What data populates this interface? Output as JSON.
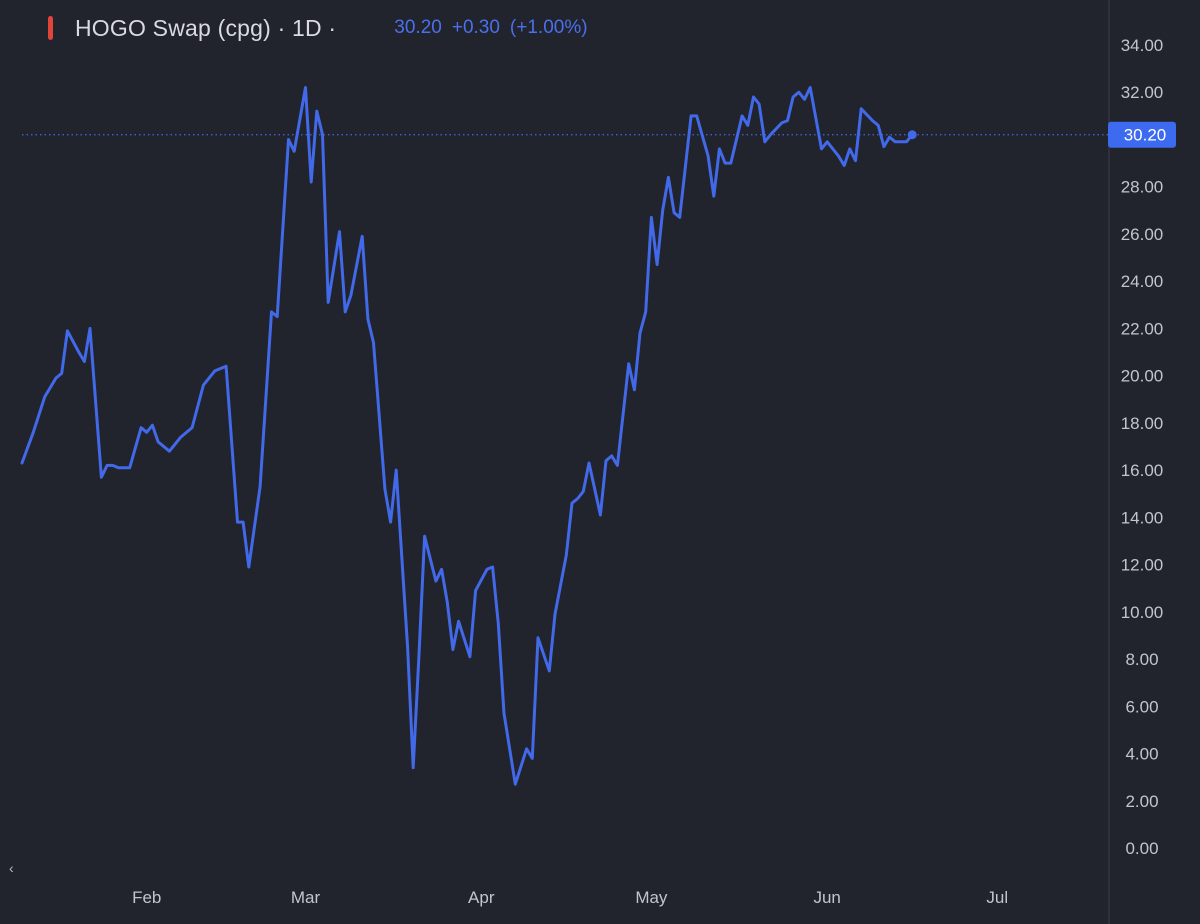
{
  "header": {
    "symbol": "HOGO Swap (cpg) · 1D ·",
    "last_price": "30.20",
    "change": "+0.30",
    "change_pct": "(+1.00%)",
    "marker_color": "#e0453a",
    "price_color": "#4a70ec"
  },
  "price_label": "30.20",
  "scroll_icon": "‹",
  "colors": {
    "background": "#21232d",
    "line": "#4169e8",
    "axis_text": "#c2c5ce",
    "axis_border": "#3a3d4a",
    "price_tag_bg": "#3d6bf0"
  },
  "chart_data": {
    "type": "line",
    "title": "HOGO Swap (cpg) · 1D ·",
    "xlabel": "",
    "ylabel": "",
    "ylim": [
      0,
      34
    ],
    "yticks": [
      "0.00",
      "2.00",
      "4.00",
      "6.00",
      "8.00",
      "10.00",
      "12.00",
      "14.00",
      "16.00",
      "18.00",
      "20.00",
      "22.00",
      "24.00",
      "26.00",
      "28.00",
      "30.00",
      "32.00",
      "34.00"
    ],
    "x_ticks": [
      {
        "label": "Feb",
        "day": 27
      },
      {
        "label": "Mar",
        "day": 55
      },
      {
        "label": "Apr",
        "day": 86
      },
      {
        "label": "May",
        "day": 116
      },
      {
        "label": "Jun",
        "day": 147
      },
      {
        "label": "Jul",
        "day": 177
      }
    ],
    "xlim": [
      5,
      196
    ],
    "last_value": 30.2,
    "grid": false,
    "series": [
      {
        "points": [
          [
            5,
            16.3
          ],
          [
            7,
            17.6
          ],
          [
            9,
            19.1
          ],
          [
            11,
            19.9
          ],
          [
            12,
            20.1
          ],
          [
            13,
            21.9
          ],
          [
            15,
            21.0
          ],
          [
            16,
            20.6
          ],
          [
            17,
            22.0
          ],
          [
            19,
            15.7
          ],
          [
            20,
            16.2
          ],
          [
            21,
            16.2
          ],
          [
            22,
            16.1
          ],
          [
            24,
            16.1
          ],
          [
            26,
            17.8
          ],
          [
            27,
            17.6
          ],
          [
            28,
            17.9
          ],
          [
            29,
            17.2
          ],
          [
            31,
            16.8
          ],
          [
            33,
            17.4
          ],
          [
            35,
            17.8
          ],
          [
            37,
            19.6
          ],
          [
            39,
            20.2
          ],
          [
            41,
            20.4
          ],
          [
            43,
            13.8
          ],
          [
            44,
            13.8
          ],
          [
            45,
            11.9
          ],
          [
            47,
            15.3
          ],
          [
            49,
            22.7
          ],
          [
            50,
            22.5
          ],
          [
            52,
            30.0
          ],
          [
            53,
            29.5
          ],
          [
            55,
            32.2
          ],
          [
            56,
            28.2
          ],
          [
            57,
            31.2
          ],
          [
            58,
            30.2
          ],
          [
            59,
            23.1
          ],
          [
            61,
            26.1
          ],
          [
            62,
            22.7
          ],
          [
            63,
            23.4
          ],
          [
            65,
            25.9
          ],
          [
            66,
            22.4
          ],
          [
            67,
            21.4
          ],
          [
            69,
            15.2
          ],
          [
            70,
            13.8
          ],
          [
            71,
            16.0
          ],
          [
            73,
            8.5
          ],
          [
            74,
            3.4
          ],
          [
            75,
            8.1
          ],
          [
            76,
            13.2
          ],
          [
            78,
            11.3
          ],
          [
            79,
            11.8
          ],
          [
            80,
            10.4
          ],
          [
            81,
            8.4
          ],
          [
            82,
            9.6
          ],
          [
            84,
            8.1
          ],
          [
            85,
            10.9
          ],
          [
            87,
            11.8
          ],
          [
            88,
            11.9
          ],
          [
            89,
            9.5
          ],
          [
            90,
            5.7
          ],
          [
            92,
            2.7
          ],
          [
            94,
            4.2
          ],
          [
            95,
            3.8
          ],
          [
            96,
            8.9
          ],
          [
            98,
            7.5
          ],
          [
            99,
            9.9
          ],
          [
            101,
            12.4
          ],
          [
            102,
            14.6
          ],
          [
            103,
            14.8
          ],
          [
            104,
            15.1
          ],
          [
            105,
            16.3
          ],
          [
            107,
            14.1
          ],
          [
            108,
            16.4
          ],
          [
            109,
            16.6
          ],
          [
            110,
            16.2
          ],
          [
            112,
            20.5
          ],
          [
            113,
            19.4
          ],
          [
            114,
            21.8
          ],
          [
            115,
            22.7
          ],
          [
            116,
            26.7
          ],
          [
            117,
            24.7
          ],
          [
            118,
            27.0
          ],
          [
            119,
            28.4
          ],
          [
            120,
            26.9
          ],
          [
            121,
            26.7
          ],
          [
            123,
            31.0
          ],
          [
            124,
            31.0
          ],
          [
            126,
            29.3
          ],
          [
            127,
            27.6
          ],
          [
            128,
            29.6
          ],
          [
            129,
            29.0
          ],
          [
            130,
            29.0
          ],
          [
            132,
            31.0
          ],
          [
            133,
            30.6
          ],
          [
            134,
            31.8
          ],
          [
            135,
            31.5
          ],
          [
            136,
            29.9
          ],
          [
            137,
            30.2
          ],
          [
            139,
            30.7
          ],
          [
            140,
            30.8
          ],
          [
            141,
            31.8
          ],
          [
            142,
            32.0
          ],
          [
            143,
            31.7
          ],
          [
            144,
            32.2
          ],
          [
            146,
            29.6
          ],
          [
            147,
            29.9
          ],
          [
            149,
            29.3
          ],
          [
            150,
            28.9
          ],
          [
            151,
            29.6
          ],
          [
            152,
            29.1
          ],
          [
            153,
            31.3
          ],
          [
            155,
            30.8
          ],
          [
            156,
            30.6
          ],
          [
            157,
            29.7
          ],
          [
            158,
            30.1
          ],
          [
            159,
            29.9
          ],
          [
            161,
            29.9
          ],
          [
            162,
            30.2
          ]
        ]
      }
    ]
  }
}
